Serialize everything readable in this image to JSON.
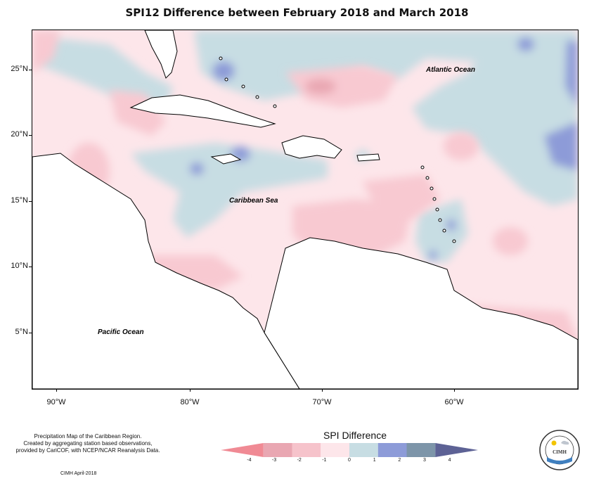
{
  "title": "SPI12 Difference between February 2018 and March 2018",
  "map": {
    "lat_labels": [
      "25°N",
      "20°N",
      "15°N",
      "10°N",
      "5°N"
    ],
    "lon_labels": [
      "90°W",
      "80°W",
      "70°W",
      "60°W"
    ],
    "labels": {
      "atlantic": "Atlantic Ocean",
      "caribbean": "Caribbean Sea",
      "pacific": "Pacific Ocean"
    },
    "colors": {
      "neutral": "#fde6ea",
      "dry_light": "#f8c9d1",
      "dry_mid": "#e9a7b2",
      "wet_light": "#c7dde3",
      "wet_mid": "#8d9bd8",
      "land": "#ffffff"
    }
  },
  "legend": {
    "title": "SPI Difference",
    "ticks": [
      "-4",
      "-3",
      "-2",
      "-1",
      "0",
      "1",
      "2",
      "3",
      "4"
    ],
    "colors": [
      "#f08a94",
      "#e9a7b2",
      "#f6c3cb",
      "#fde6ea",
      "#c7dde3",
      "#8d9bd8",
      "#7d95a9",
      "#5d6295"
    ]
  },
  "footer": {
    "line1": "Precipitation Map of the Caribbean Region.",
    "line2": "Created by aggregating station based observations,",
    "line3": "provided by CariCOF, with NCEP/NCAR Reanalysis Data.",
    "credit": "CIMH April-2018",
    "logo_text": "CIMH"
  }
}
